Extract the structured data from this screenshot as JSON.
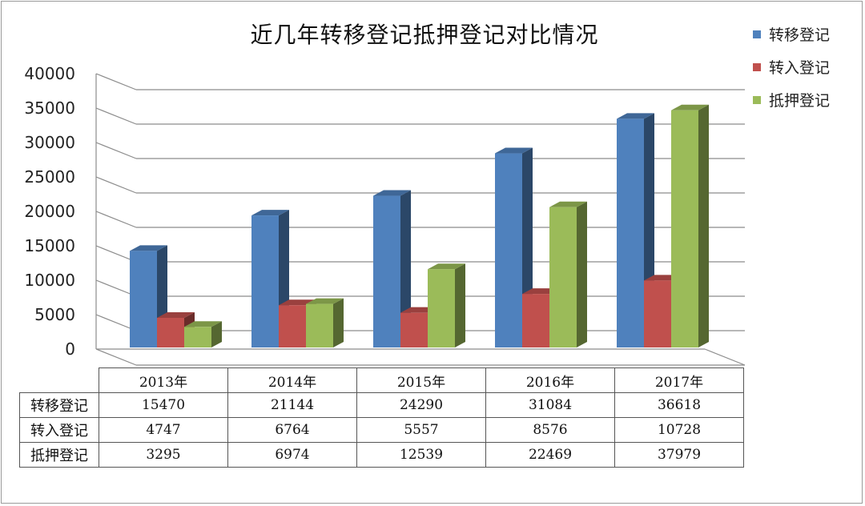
{
  "chart_data": {
    "type": "bar",
    "title": "近几年转移登记抵押登记对比情况",
    "categories": [
      "2013年",
      "2014年",
      "2015年",
      "2016年",
      "2017年"
    ],
    "series": [
      {
        "name": "转移登记",
        "values": [
          15470,
          21144,
          24290,
          31084,
          36618
        ],
        "color": "#4f81bd"
      },
      {
        "name": "转入登记",
        "values": [
          4747,
          6764,
          5557,
          8576,
          10728
        ],
        "color": "#c0504d"
      },
      {
        "name": "抵押登记",
        "values": [
          3295,
          6974,
          12539,
          22469,
          37979
        ],
        "color": "#9bbb59"
      }
    ],
    "ylim": [
      0,
      40000
    ],
    "yticks": [
      "0",
      "5000",
      "10000",
      "15000",
      "20000",
      "25000",
      "30000",
      "35000",
      "40000"
    ],
    "grid": true,
    "legend": "right",
    "style": "3d-column with data table"
  }
}
